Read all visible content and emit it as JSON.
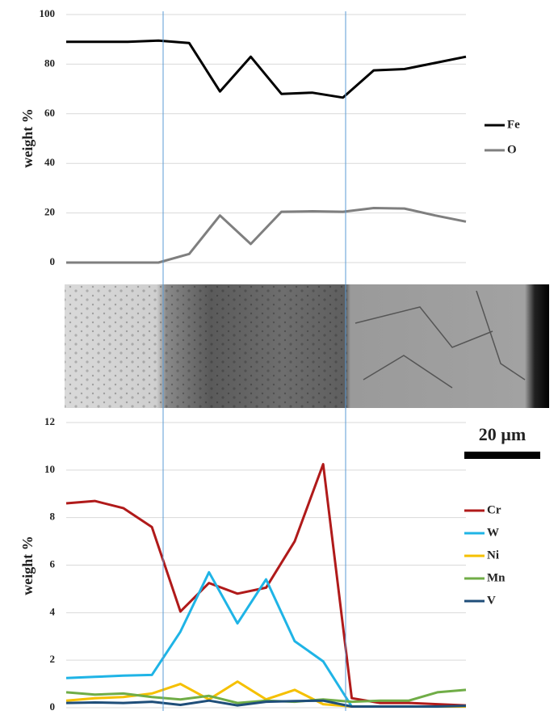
{
  "chart_data": [
    {
      "type": "line",
      "y_label": "weight %",
      "ylim": [
        0,
        100
      ],
      "yticks": [
        0,
        20,
        40,
        60,
        80,
        100
      ],
      "grid": true,
      "series": [
        {
          "name": "Fe",
          "color": "#000000",
          "values": [
            89,
            89,
            89,
            89.5,
            88.5,
            69,
            83,
            68,
            68.5,
            66.5,
            77.5,
            78,
            80.5,
            83
          ]
        },
        {
          "name": "O",
          "color": "#7f7f7f",
          "values": [
            0,
            0,
            0,
            0,
            3.5,
            19,
            7.5,
            20.5,
            20.7,
            20.5,
            22,
            21.8,
            19,
            16.5
          ]
        }
      ]
    },
    {
      "type": "line",
      "y_label": "weight %",
      "ylim": [
        0,
        12
      ],
      "yticks": [
        0,
        2,
        4,
        6,
        8,
        10,
        12
      ],
      "grid": true,
      "series": [
        {
          "name": "Cr",
          "color": "#b01a1a",
          "values": [
            8.6,
            8.7,
            8.4,
            7.6,
            4.05,
            5.25,
            4.8,
            5.05,
            7.0,
            10.25,
            0.4,
            0.2,
            0.2,
            0.15,
            0.1
          ]
        },
        {
          "name": "W",
          "color": "#1fb4e6",
          "values": [
            1.25,
            1.3,
            1.35,
            1.38,
            3.2,
            5.7,
            3.55,
            5.4,
            2.8,
            1.95,
            0.05,
            0.05,
            0.05,
            0.05,
            0.05
          ]
        },
        {
          "name": "Ni",
          "color": "#f5c000",
          "values": [
            0.3,
            0.4,
            0.45,
            0.6,
            1.0,
            0.35,
            1.1,
            0.35,
            0.75,
            0.15,
            0.05,
            0.05,
            0.05,
            0.05,
            0.05
          ]
        },
        {
          "name": "Mn",
          "color": "#70ad47",
          "values": [
            0.65,
            0.55,
            0.6,
            0.45,
            0.35,
            0.5,
            0.2,
            0.3,
            0.25,
            0.35,
            0.25,
            0.3,
            0.3,
            0.65,
            0.75
          ]
        },
        {
          "name": "V",
          "color": "#1f4e79",
          "values": [
            0.2,
            0.22,
            0.2,
            0.25,
            0.12,
            0.3,
            0.1,
            0.25,
            0.28,
            0.3,
            0.05,
            0.05,
            0.05,
            0.05,
            0.08
          ]
        }
      ]
    }
  ],
  "scale_bar_label": "20 µm"
}
